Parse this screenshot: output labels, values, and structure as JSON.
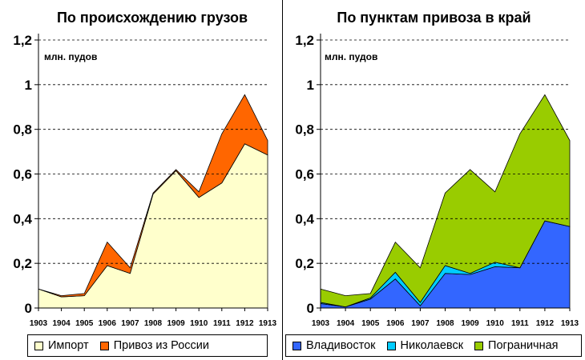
{
  "chart_data": [
    {
      "type": "area",
      "stacked": true,
      "title": "По происхождению грузов",
      "ylabel": "млн. пудов",
      "ylim": [
        0,
        1.2
      ],
      "y_ticks": [
        "0",
        "0,2",
        "0,4",
        "0,6",
        "0,8",
        "1",
        "1,2"
      ],
      "grid": true,
      "legend_position": "bottom",
      "categories": [
        "1903",
        "1904",
        "1905",
        "1906",
        "1907",
        "1908",
        "1909",
        "1910",
        "1911",
        "1912",
        "1913"
      ],
      "series": [
        {
          "name": "Импорт",
          "color": "#FFFFCC",
          "values": [
            0.085,
            0.05,
            0.055,
            0.19,
            0.155,
            0.51,
            0.615,
            0.495,
            0.56,
            0.735,
            0.685
          ]
        },
        {
          "name": "Привоз из России",
          "color": "#FF6600",
          "values": [
            0.0,
            0.005,
            0.01,
            0.105,
            0.025,
            0.005,
            0.005,
            0.025,
            0.22,
            0.22,
            0.065
          ]
        }
      ]
    },
    {
      "type": "area",
      "stacked": true,
      "title": "По пунктам привоза в край",
      "ylabel": "млн. пудов",
      "ylim": [
        0,
        1.2
      ],
      "y_ticks": [
        "0",
        "0,2",
        "0,4",
        "0,6",
        "0,8",
        "1",
        "1,2"
      ],
      "grid": true,
      "legend_position": "bottom",
      "categories": [
        "1903",
        "1904",
        "1905",
        "1906",
        "1907",
        "1908",
        "1909",
        "1910",
        "1911",
        "1912",
        "1913"
      ],
      "series": [
        {
          "name": "Владивосток",
          "color": "#3366FF",
          "values": [
            0.02,
            0.005,
            0.04,
            0.13,
            0.01,
            0.155,
            0.15,
            0.185,
            0.18,
            0.39,
            0.365
          ]
        },
        {
          "name": "Николаевск",
          "color": "#00CCFF",
          "values": [
            0.005,
            0.0,
            0.005,
            0.03,
            0.015,
            0.035,
            0.005,
            0.02,
            0.0,
            0.0,
            0.0
          ]
        },
        {
          "name": "Пограничная",
          "color": "#99CC00",
          "values": [
            0.06,
            0.05,
            0.02,
            0.135,
            0.155,
            0.325,
            0.465,
            0.315,
            0.6,
            0.565,
            0.385
          ]
        }
      ]
    }
  ]
}
